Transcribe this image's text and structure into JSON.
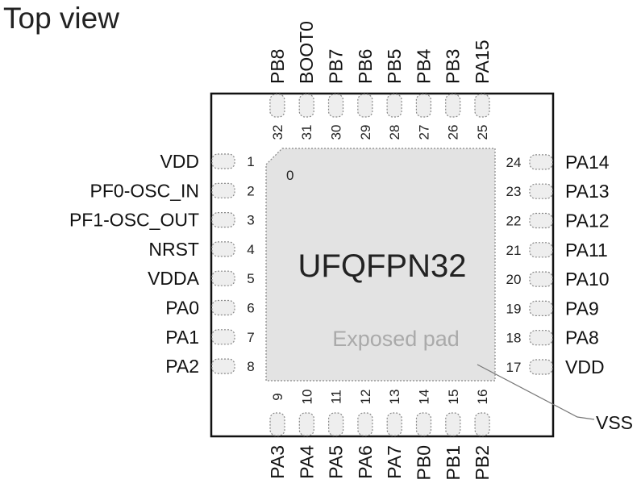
{
  "title": "Top view",
  "package": "UFQFPN32",
  "exposed_pad": {
    "label": "Exposed pad",
    "net": "VSS"
  },
  "pin1_marker": "0",
  "pins": {
    "left": [
      {
        "num": "1",
        "name": "VDD"
      },
      {
        "num": "2",
        "name": "PF0-OSC_IN"
      },
      {
        "num": "3",
        "name": "PF1-OSC_OUT"
      },
      {
        "num": "4",
        "name": "NRST"
      },
      {
        "num": "5",
        "name": "VDDA"
      },
      {
        "num": "6",
        "name": "PA0"
      },
      {
        "num": "7",
        "name": "PA1"
      },
      {
        "num": "8",
        "name": "PA2"
      }
    ],
    "bottom": [
      {
        "num": "9",
        "name": "PA3"
      },
      {
        "num": "10",
        "name": "PA4"
      },
      {
        "num": "11",
        "name": "PA5"
      },
      {
        "num": "12",
        "name": "PA6"
      },
      {
        "num": "13",
        "name": "PA7"
      },
      {
        "num": "14",
        "name": "PB0"
      },
      {
        "num": "15",
        "name": "PB1"
      },
      {
        "num": "16",
        "name": "PB2"
      }
    ],
    "right": [
      {
        "num": "17",
        "name": "VDD"
      },
      {
        "num": "18",
        "name": "PA8"
      },
      {
        "num": "19",
        "name": "PA9"
      },
      {
        "num": "20",
        "name": "PA10"
      },
      {
        "num": "21",
        "name": "PA11"
      },
      {
        "num": "22",
        "name": "PA12"
      },
      {
        "num": "23",
        "name": "PA13"
      },
      {
        "num": "24",
        "name": "PA14"
      }
    ],
    "top": [
      {
        "num": "25",
        "name": "PA15"
      },
      {
        "num": "26",
        "name": "PB3"
      },
      {
        "num": "27",
        "name": "PB4"
      },
      {
        "num": "28",
        "name": "PB5"
      },
      {
        "num": "29",
        "name": "PB6"
      },
      {
        "num": "30",
        "name": "PB7"
      },
      {
        "num": "31",
        "name": "BOOT0"
      },
      {
        "num": "32",
        "name": "PB8"
      }
    ]
  }
}
